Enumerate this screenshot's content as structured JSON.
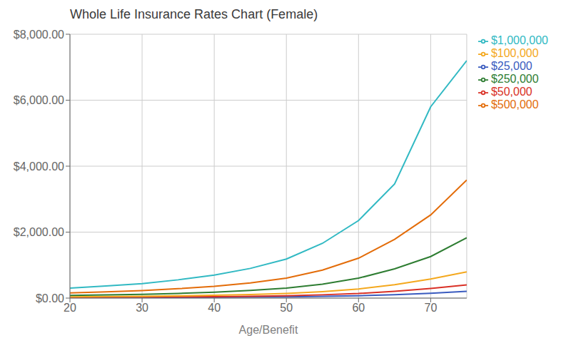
{
  "chart_data": {
    "type": "line",
    "title": "Whole Life Insurance Rates Chart (Female)",
    "xlabel": "Age/Benefit",
    "x": [
      20,
      25,
      30,
      35,
      40,
      45,
      50,
      55,
      60,
      65,
      70,
      75
    ],
    "series": [
      {
        "name": "$25,000",
        "color": "#3a5bbf",
        "values": [
          13,
          15,
          17,
          20,
          24,
          30,
          38,
          52,
          72,
          105,
          148,
          205
        ]
      },
      {
        "name": "$50,000",
        "color": "#d93025",
        "values": [
          22,
          26,
          30,
          36,
          44,
          56,
          72,
          100,
          140,
          205,
          292,
          400
        ]
      },
      {
        "name": "$100,000",
        "color": "#f4a81d",
        "values": [
          40,
          47,
          56,
          68,
          84,
          108,
          140,
          196,
          276,
          405,
          580,
          795
        ]
      },
      {
        "name": "$250,000",
        "color": "#2e7d32",
        "values": [
          80,
          96,
          115,
          143,
          178,
          230,
          302,
          424,
          604,
          885,
          1260,
          1830
        ]
      },
      {
        "name": "$500,000",
        "color": "#e36c09",
        "values": [
          155,
          188,
          226,
          284,
          355,
          460,
          605,
          850,
          1210,
          1780,
          2520,
          3580
        ]
      },
      {
        "name": "$1,000,000",
        "color": "#31b9c3",
        "values": [
          300,
          365,
          440,
          554,
          695,
          900,
          1185,
          1660,
          2350,
          3460,
          5800,
          7200
        ]
      }
    ],
    "xlim": [
      20,
      75
    ],
    "xticks": [
      20,
      30,
      40,
      50,
      60,
      70
    ],
    "ylim": [
      0,
      8000
    ],
    "yticks": [
      {
        "value": 0,
        "label": "$0.00"
      },
      {
        "value": 2000,
        "label": "$2,000.00"
      },
      {
        "value": 4000,
        "label": "$4,000.00"
      },
      {
        "value": 6000,
        "label": "$6,000.00"
      },
      {
        "value": 8000,
        "label": "$8,000.00"
      }
    ],
    "grid": true,
    "legend": "right"
  }
}
